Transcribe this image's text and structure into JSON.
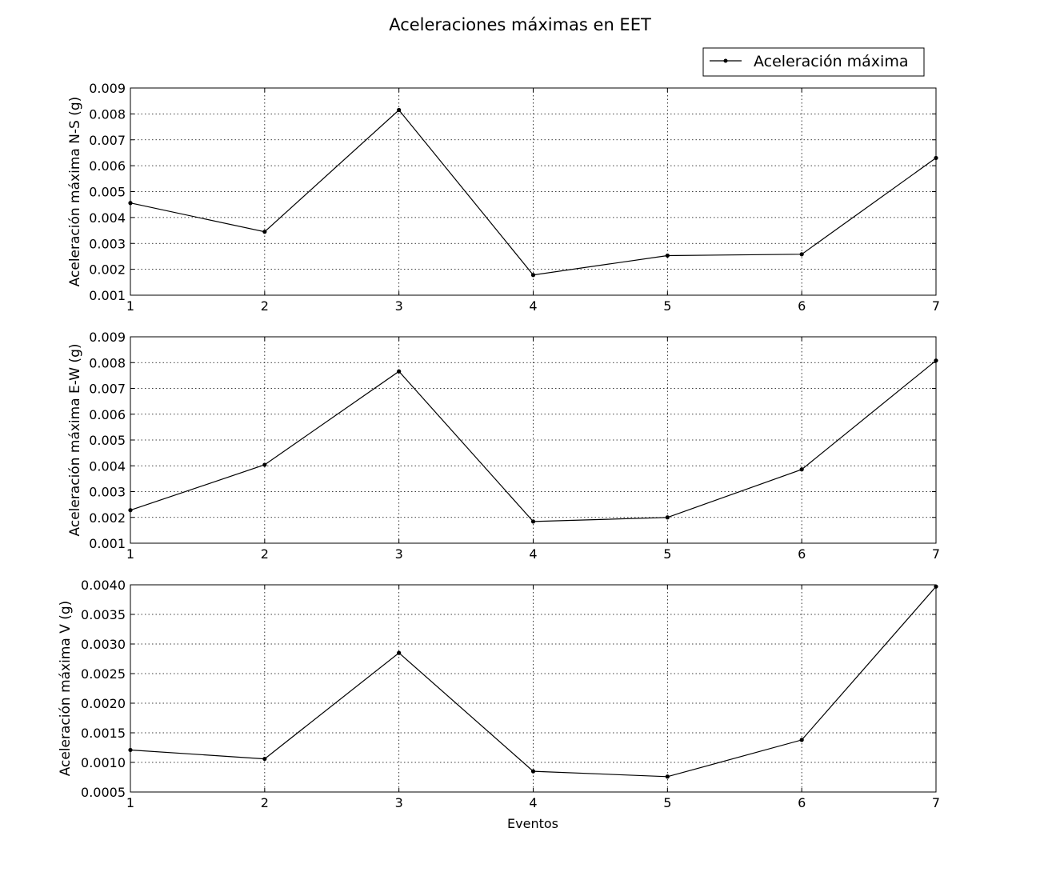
{
  "title": "Aceleraciones máximas en EET",
  "legend": {
    "label": "Aceleración máxima",
    "position": "top-right"
  },
  "xlabel": "Eventos",
  "chart_data": [
    {
      "type": "line",
      "ylabel": "Aceleración máxima N-S (g)",
      "x": [
        1,
        2,
        3,
        4,
        5,
        6,
        7
      ],
      "values": [
        0.00456,
        0.00345,
        0.00815,
        0.00178,
        0.00253,
        0.00258,
        0.0063
      ],
      "xlim": [
        1,
        7
      ],
      "ylim": [
        0.001,
        0.009
      ],
      "yticks": [
        "0.001",
        "0.002",
        "0.003",
        "0.004",
        "0.005",
        "0.006",
        "0.007",
        "0.008",
        "0.009"
      ],
      "xticks": [
        "1",
        "2",
        "3",
        "4",
        "5",
        "6",
        "7"
      ],
      "grid": true
    },
    {
      "type": "line",
      "ylabel": "Aceleración máxima E-W (g)",
      "x": [
        1,
        2,
        3,
        4,
        5,
        6,
        7
      ],
      "values": [
        0.00228,
        0.00404,
        0.00766,
        0.00184,
        0.002,
        0.00386,
        0.00808
      ],
      "xlim": [
        1,
        7
      ],
      "ylim": [
        0.001,
        0.009
      ],
      "yticks": [
        "0.001",
        "0.002",
        "0.003",
        "0.004",
        "0.005",
        "0.006",
        "0.007",
        "0.008",
        "0.009"
      ],
      "xticks": [
        "1",
        "2",
        "3",
        "4",
        "5",
        "6",
        "7"
      ],
      "grid": true
    },
    {
      "type": "line",
      "ylabel": "Aceleración máxima V (g)",
      "x": [
        1,
        2,
        3,
        4,
        5,
        6,
        7
      ],
      "values": [
        0.00121,
        0.00106,
        0.00285,
        0.00085,
        0.00076,
        0.00138,
        0.00397
      ],
      "xlim": [
        1,
        7
      ],
      "ylim": [
        0.0005,
        0.004
      ],
      "yticks": [
        "0.0005",
        "0.0010",
        "0.0015",
        "0.0020",
        "0.0025",
        "0.0030",
        "0.0035",
        "0.0040"
      ],
      "xticks": [
        "1",
        "2",
        "3",
        "4",
        "5",
        "6",
        "7"
      ],
      "grid": true
    }
  ],
  "colors": {
    "line": "#000000",
    "grid": "#000000",
    "background": "#ffffff"
  }
}
